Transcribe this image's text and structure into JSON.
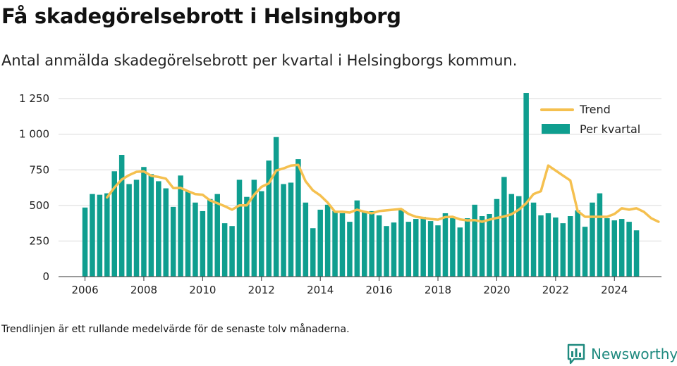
{
  "header": {
    "title": "Få skadegörelsebrott i Helsingborg",
    "subtitle": "Antal anmälda skadegörelsebrott per kvartal i Helsingborgs kommun."
  },
  "footer": {
    "note": "Trendlinjen är ett rullande medelvärde för de senaste tolv månaderna.",
    "brand": "Newsworthy"
  },
  "colors": {
    "bar": "#0f9e8f",
    "trend": "#f5c04f",
    "grid": "#d9d9d9",
    "brand": "#1f8a7f"
  },
  "chart_data": {
    "type": "bar",
    "xlim": [
      2005.1,
      2025.6
    ],
    "ylim": [
      0,
      1300
    ],
    "x_ticks": [
      2006,
      2008,
      2010,
      2012,
      2014,
      2016,
      2018,
      2020,
      2022,
      2024
    ],
    "x_tick_labels": [
      "2006",
      "2008",
      "2010",
      "2012",
      "2014",
      "2016",
      "2018",
      "2020",
      "2022",
      "2024"
    ],
    "y_ticks": [
      0,
      250,
      500,
      750,
      1000,
      1250
    ],
    "y_tick_labels": [
      "0",
      "250",
      "500",
      "750",
      "1 000",
      "1 250"
    ],
    "grid": true,
    "legend_position": "top-right",
    "legend": [
      "Trend",
      "Per kvartal"
    ],
    "series": [
      {
        "name": "Per kvartal",
        "type": "bar",
        "start_year": 2006,
        "values": [
          485,
          580,
          575,
          585,
          740,
          855,
          650,
          680,
          770,
          720,
          670,
          620,
          490,
          710,
          600,
          520,
          460,
          545,
          580,
          375,
          355,
          680,
          560,
          680,
          600,
          815,
          980,
          650,
          660,
          825,
          520,
          340,
          470,
          505,
          460,
          445,
          385,
          535,
          455,
          460,
          430,
          355,
          380,
          475,
          385,
          405,
          420,
          390,
          360,
          445,
          410,
          345,
          410,
          505,
          425,
          440,
          545,
          700,
          580,
          565,
          1290,
          520,
          430,
          445,
          415,
          375,
          425,
          465,
          350,
          520,
          585,
          410,
          395,
          405,
          385,
          325
        ]
      },
      {
        "name": "Trend",
        "type": "line",
        "start_year": 2006.75,
        "values": [
          556,
          625,
          682,
          713,
          736,
          739,
          708,
          700,
          688,
          622,
          623,
          600,
          580,
          575,
          535,
          515,
          495,
          470,
          500,
          500,
          575,
          630,
          655,
          745,
          760,
          780,
          785,
          670,
          605,
          570,
          520,
          455,
          455,
          450,
          470,
          455,
          445,
          460,
          465,
          470,
          475,
          440,
          420,
          412,
          405,
          400,
          418,
          420,
          402,
          395,
          397,
          385,
          400,
          412,
          422,
          438,
          470,
          515,
          580,
          600,
          780,
          745,
          710,
          675,
          460,
          420,
          420,
          420,
          420,
          440,
          480,
          470,
          480,
          455,
          410,
          385
        ]
      }
    ]
  }
}
